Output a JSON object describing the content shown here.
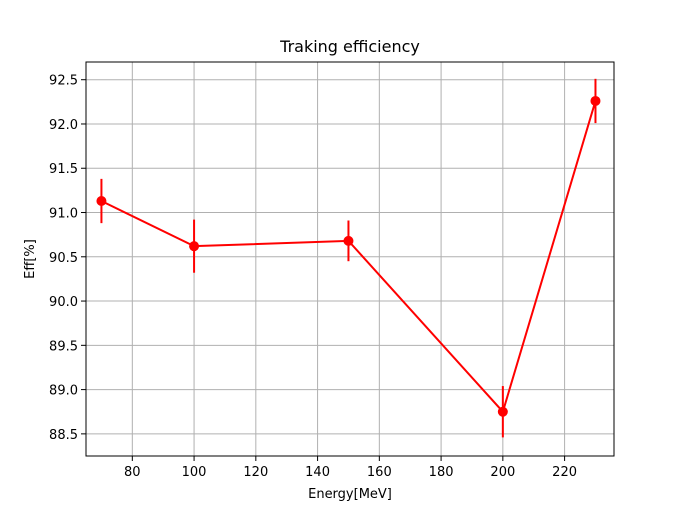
{
  "chart_data": {
    "type": "line",
    "title": "Traking efficiency",
    "xlabel": "Energy[MeV]",
    "ylabel": "Eff[%]",
    "xlim": [
      65,
      236
    ],
    "ylim": [
      88.25,
      92.7
    ],
    "xticks": [
      80,
      100,
      120,
      140,
      160,
      180,
      200,
      220
    ],
    "yticks": [
      88.5,
      89.0,
      89.5,
      90.0,
      90.5,
      91.0,
      91.5,
      92.0,
      92.5
    ],
    "ytick_format": "0.0",
    "grid": true,
    "series": [
      {
        "color": "#ff0000",
        "marker": "circle",
        "points": [
          {
            "x": 70,
            "y": 91.13,
            "err": 0.25
          },
          {
            "x": 100,
            "y": 90.62,
            "err": 0.3
          },
          {
            "x": 150,
            "y": 90.68,
            "err": 0.23
          },
          {
            "x": 200,
            "y": 88.75,
            "err": 0.29
          },
          {
            "x": 230,
            "y": 92.26,
            "err": 0.25
          }
        ]
      }
    ]
  }
}
